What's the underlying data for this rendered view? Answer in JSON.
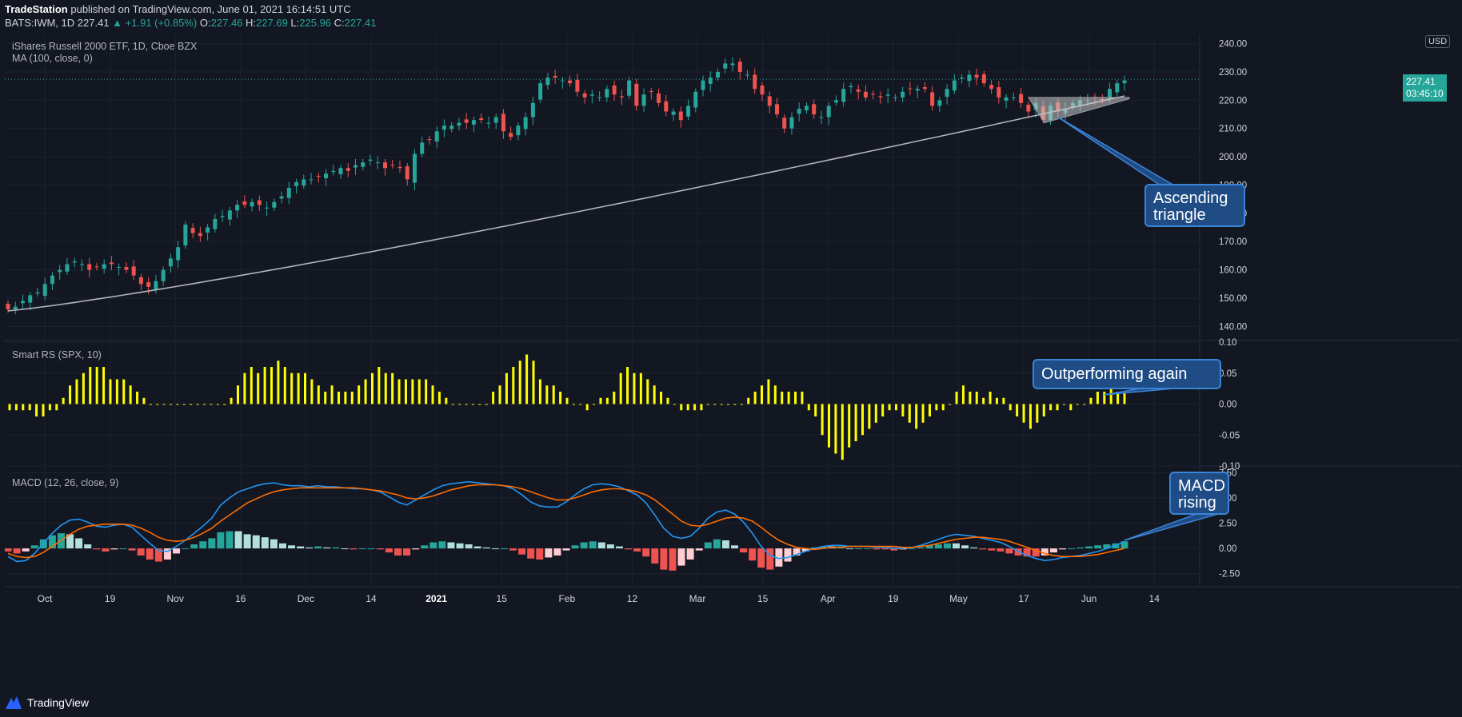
{
  "header": {
    "publisher": "TradeStation",
    "published_text": " published on TradingView.com, June 01, 2021 16:14:51 UTC",
    "symbol": "BATS:IWM, 1D",
    "last": "227.41",
    "change": "+1.91 (+0.85%)",
    "o_label": "O:",
    "o": "227.46",
    "h_label": "H:",
    "h": "227.69",
    "l_label": "L:",
    "l": "225.96",
    "c_label": "C:",
    "c": "227.41"
  },
  "panes": {
    "price_title": "iShares Russell 2000 ETF, 1D, Cboe BZX",
    "ma_title": "MA (100, close, 0)",
    "rs_title": "Smart RS (SPX, 10)",
    "macd_title": "MACD (12, 26, close, 9)",
    "currency": "USD",
    "price_tag": "227.41",
    "countdown": "03:45:10"
  },
  "annotations": {
    "triangle": "Ascending\ntriangle",
    "outperform": "Outperforming again",
    "macd": "MACD\nrising"
  },
  "footer": {
    "brand": "TradingView"
  },
  "colors": {
    "background": "#131722",
    "up": "#26a69a",
    "down": "#ef5350",
    "ma": "#b2b5be",
    "rs": "#ffff00",
    "macd_line": "#2196f3",
    "signal_line": "#ff6d00",
    "callout": "#1f4c85"
  },
  "chart_data": [
    {
      "type": "candlestick",
      "title": "iShares Russell 2000 ETF, 1D, Cboe BZX",
      "ylim": [
        135,
        243
      ],
      "yticks": [
        140,
        150,
        160,
        170,
        180,
        190,
        200,
        210,
        220,
        230,
        240
      ],
      "ytick_labels": [
        "140.00",
        "150.00",
        "160.00",
        "170.00",
        "180.00",
        "190.00",
        "200.00",
        "210.00",
        "220.00",
        "230.00",
        "240.00"
      ],
      "x_labels": [
        "Oct",
        "19",
        "Nov",
        "16",
        "Dec",
        "14",
        "2021",
        "15",
        "Feb",
        "12",
        "Mar",
        "15",
        "Apr",
        "19",
        "May",
        "17",
        "Jun",
        "14"
      ],
      "close_series": [
        146,
        147,
        149,
        151,
        152,
        155,
        158,
        160,
        162,
        163,
        162,
        160,
        161,
        162,
        162,
        161,
        160,
        158,
        155,
        154,
        156,
        160,
        164,
        168,
        176,
        173,
        172,
        175,
        178,
        179,
        181,
        183,
        183,
        184,
        183,
        182,
        184,
        186,
        189,
        191,
        192,
        192,
        193,
        194,
        195,
        196,
        195,
        197,
        198,
        199,
        198,
        196,
        197,
        196,
        192,
        201,
        205,
        206,
        209,
        211,
        211,
        212,
        212,
        213,
        213,
        212,
        214,
        209,
        207,
        211,
        214,
        219,
        226,
        228,
        228,
        227,
        226,
        223,
        221,
        222,
        221,
        224,
        222,
        221,
        227,
        218,
        222,
        223,
        219,
        216,
        216,
        213,
        218,
        223,
        227,
        228,
        230,
        233,
        233,
        230,
        229,
        224,
        222,
        218,
        215,
        210,
        214,
        217,
        218,
        215,
        214,
        218,
        220,
        224,
        225,
        223,
        221,
        222,
        221,
        222,
        221,
        223,
        224,
        224,
        224,
        218,
        220,
        224,
        227,
        228,
        229,
        228,
        226,
        224,
        221,
        221,
        221,
        219,
        216,
        219,
        213,
        218,
        216,
        217,
        219,
        220,
        220,
        221,
        220,
        224,
        226,
        227
      ],
      "ma_label": "MA (100, close, 0)",
      "ma_start": 145.5,
      "ma_end": 221.5,
      "last_price": 227.41
    },
    {
      "type": "bar",
      "title": "Smart RS (SPX, 10)",
      "ylim": [
        -0.1,
        0.1
      ],
      "yticks": [
        -0.1,
        -0.05,
        0,
        0.05,
        0.1
      ],
      "ytick_labels": [
        "-0.10",
        "-0.05",
        "0.00",
        "0.05",
        "0.10"
      ],
      "values": [
        -0.01,
        -0.01,
        -0.01,
        -0.01,
        -0.02,
        -0.02,
        -0.01,
        -0.01,
        0.01,
        0.03,
        0.04,
        0.05,
        0.06,
        0.06,
        0.06,
        0.04,
        0.04,
        0.04,
        0.03,
        0.02,
        0.01,
        0.0,
        0.0,
        0.0,
        0.0,
        0.0,
        0.0,
        0.0,
        0.0,
        0.0,
        0.0,
        0.0,
        0.0,
        0.01,
        0.03,
        0.05,
        0.06,
        0.05,
        0.06,
        0.06,
        0.07,
        0.06,
        0.05,
        0.05,
        0.05,
        0.04,
        0.03,
        0.02,
        0.03,
        0.02,
        0.02,
        0.02,
        0.03,
        0.04,
        0.05,
        0.06,
        0.05,
        0.05,
        0.04,
        0.04,
        0.04,
        0.04,
        0.04,
        0.03,
        0.02,
        0.01,
        0.0,
        0.0,
        0.0,
        0.0,
        0.0,
        0.0,
        0.02,
        0.03,
        0.05,
        0.06,
        0.07,
        0.08,
        0.07,
        0.04,
        0.03,
        0.03,
        0.02,
        0.01,
        0.0,
        0.0,
        -0.01,
        0.0,
        0.01,
        0.01,
        0.02,
        0.05,
        0.06,
        0.05,
        0.05,
        0.04,
        0.03,
        0.02,
        0.01,
        0.0,
        -0.01,
        -0.01,
        -0.01,
        -0.01,
        0.0,
        0.0,
        0.0,
        0.0,
        0.0,
        0.0,
        0.01,
        0.02,
        0.03,
        0.04,
        0.03,
        0.02,
        0.02,
        0.02,
        0.02,
        -0.01,
        -0.02,
        -0.05,
        -0.07,
        -0.08,
        -0.09,
        -0.07,
        -0.06,
        -0.05,
        -0.04,
        -0.03,
        -0.02,
        -0.01,
        -0.01,
        -0.02,
        -0.03,
        -0.04,
        -0.03,
        -0.02,
        -0.01,
        -0.01,
        0.0,
        0.02,
        0.03,
        0.02,
        0.02,
        0.01,
        0.02,
        0.01,
        0.01,
        -0.01,
        -0.02,
        -0.03,
        -0.04,
        -0.03,
        -0.02,
        -0.01,
        -0.01,
        0.0,
        -0.01,
        0.0,
        0.0,
        0.01,
        0.02,
        0.02,
        0.03,
        0.02,
        0.02
      ]
    },
    {
      "type": "line",
      "title": "MACD (12, 26, close, 9)",
      "ylim": [
        -3.0,
        8.0
      ],
      "yticks": [
        -2.5,
        0,
        2.5,
        5,
        7.5
      ],
      "ytick_labels": [
        "-2.50",
        "0.00",
        "2.50",
        "5.00",
        "7.50"
      ],
      "series": [
        {
          "name": "MACD",
          "values": [
            -0.8,
            -1.3,
            -1.2,
            -0.5,
            0.5,
            1.5,
            2.3,
            2.8,
            2.9,
            2.6,
            2.2,
            2.1,
            2.3,
            2.4,
            2.1,
            1.3,
            0.5,
            -0.2,
            -0.3,
            0.2,
            0.8,
            1.5,
            2.2,
            3.0,
            4.3,
            5.0,
            5.6,
            5.9,
            6.2,
            6.4,
            6.5,
            6.3,
            6.2,
            6.2,
            6.1,
            6.2,
            6.1,
            6.1,
            6.0,
            5.9,
            5.9,
            5.8,
            5.6,
            5.1,
            4.6,
            4.3,
            4.8,
            5.3,
            5.8,
            6.2,
            6.4,
            6.5,
            6.6,
            6.5,
            6.4,
            6.3,
            6.2,
            5.9,
            5.3,
            4.6,
            4.2,
            4.1,
            4.1,
            4.6,
            5.3,
            5.9,
            6.3,
            6.4,
            6.3,
            6.1,
            5.7,
            5.3,
            4.5,
            3.3,
            2.0,
            1.2,
            1.0,
            1.2,
            2.0,
            3.0,
            3.6,
            3.8,
            3.4,
            2.6,
            1.5,
            0.2,
            -0.7,
            -1.0,
            -0.9,
            -0.6,
            -0.3,
            0.0,
            0.2,
            0.3,
            0.3,
            0.2,
            0.2,
            0.2,
            0.1,
            0.1,
            0.0,
            0.0,
            0.1,
            0.3,
            0.6,
            0.9,
            1.2,
            1.4,
            1.3,
            1.2,
            1.0,
            0.8,
            0.6,
            0.2,
            -0.3,
            -0.7,
            -1.0,
            -1.2,
            -1.1,
            -0.9,
            -0.8,
            -0.7,
            -0.5,
            -0.3,
            0.0,
            0.3,
            0.7
          ]
        },
        {
          "name": "Signal",
          "values": [
            -0.5,
            -0.8,
            -0.9,
            -0.8,
            -0.4,
            0.2,
            0.8,
            1.4,
            1.9,
            2.2,
            2.3,
            2.4,
            2.4,
            2.4,
            2.3,
            2.0,
            1.6,
            1.1,
            0.8,
            0.7,
            0.8,
            1.1,
            1.5,
            2.0,
            2.7,
            3.3,
            3.9,
            4.5,
            4.9,
            5.3,
            5.6,
            5.8,
            5.9,
            6.0,
            6.0,
            6.0,
            6.0,
            6.0,
            6.0,
            6.0,
            5.9,
            5.8,
            5.7,
            5.5,
            5.3,
            5.0,
            4.9,
            5.0,
            5.2,
            5.5,
            5.8,
            6.0,
            6.2,
            6.3,
            6.3,
            6.3,
            6.2,
            6.1,
            5.9,
            5.6,
            5.3,
            5.0,
            4.8,
            4.8,
            5.0,
            5.3,
            5.6,
            5.8,
            5.9,
            5.9,
            5.8,
            5.6,
            5.3,
            4.8,
            4.1,
            3.4,
            2.7,
            2.3,
            2.2,
            2.4,
            2.7,
            3.0,
            3.1,
            3.0,
            2.7,
            2.1,
            1.4,
            0.8,
            0.4,
            0.1,
            0.0,
            -0.1,
            0.0,
            0.1,
            0.1,
            0.2,
            0.2,
            0.2,
            0.2,
            0.2,
            0.2,
            0.1,
            0.1,
            0.2,
            0.3,
            0.5,
            0.7,
            0.9,
            1.0,
            1.1,
            1.1,
            1.0,
            0.9,
            0.7,
            0.4,
            0.1,
            -0.2,
            -0.5,
            -0.7,
            -0.8,
            -0.8,
            -0.8,
            -0.7,
            -0.6,
            -0.4,
            -0.2,
            0.0
          ]
        }
      ]
    }
  ]
}
